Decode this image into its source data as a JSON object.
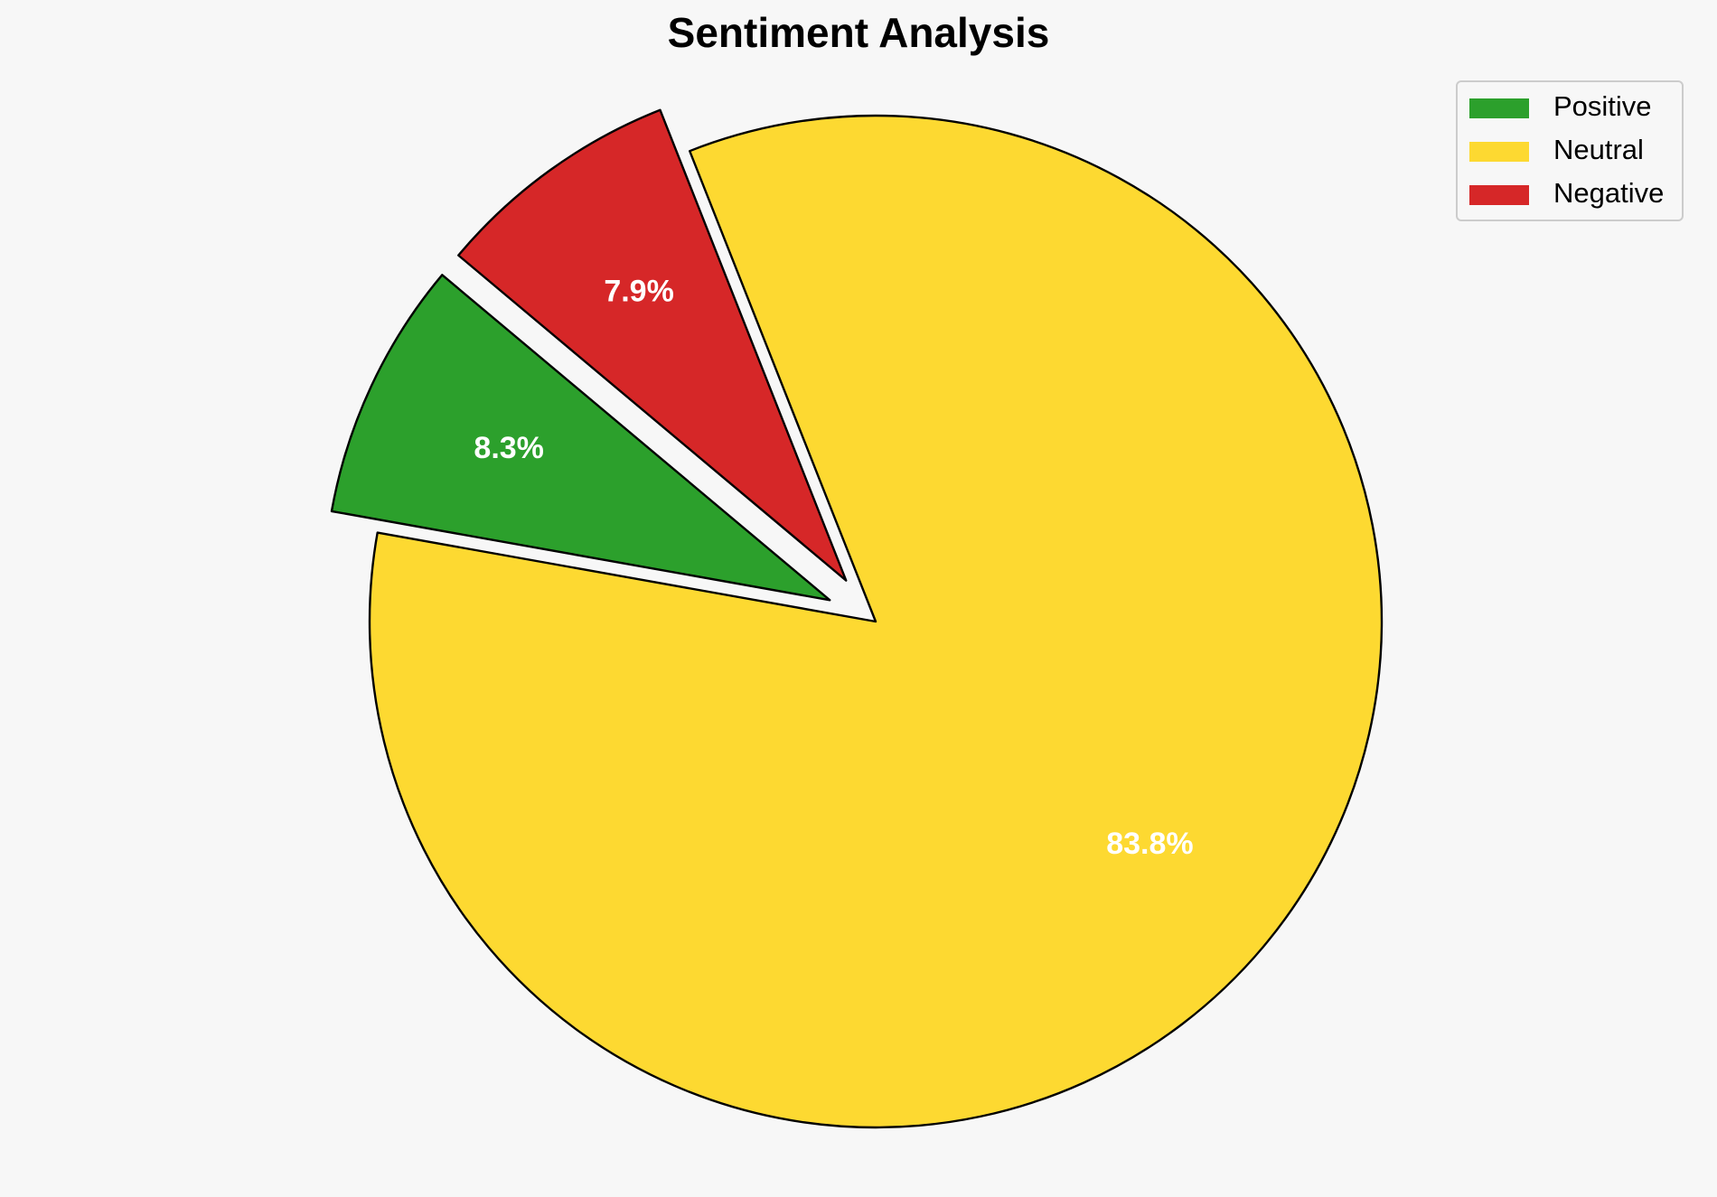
{
  "chart_data": {
    "type": "pie",
    "title": "Sentiment Analysis",
    "categories": [
      "Positive",
      "Neutral",
      "Negative"
    ],
    "values": [
      8.3,
      83.8,
      7.9
    ],
    "value_labels": [
      "8.3%",
      "83.8%",
      "7.9%"
    ],
    "colors": [
      "#2ca02c",
      "#fdd931",
      "#d62728"
    ],
    "startangle": 140,
    "explode": [
      0.1,
      0,
      0.1
    ],
    "legend": "upper right"
  }
}
